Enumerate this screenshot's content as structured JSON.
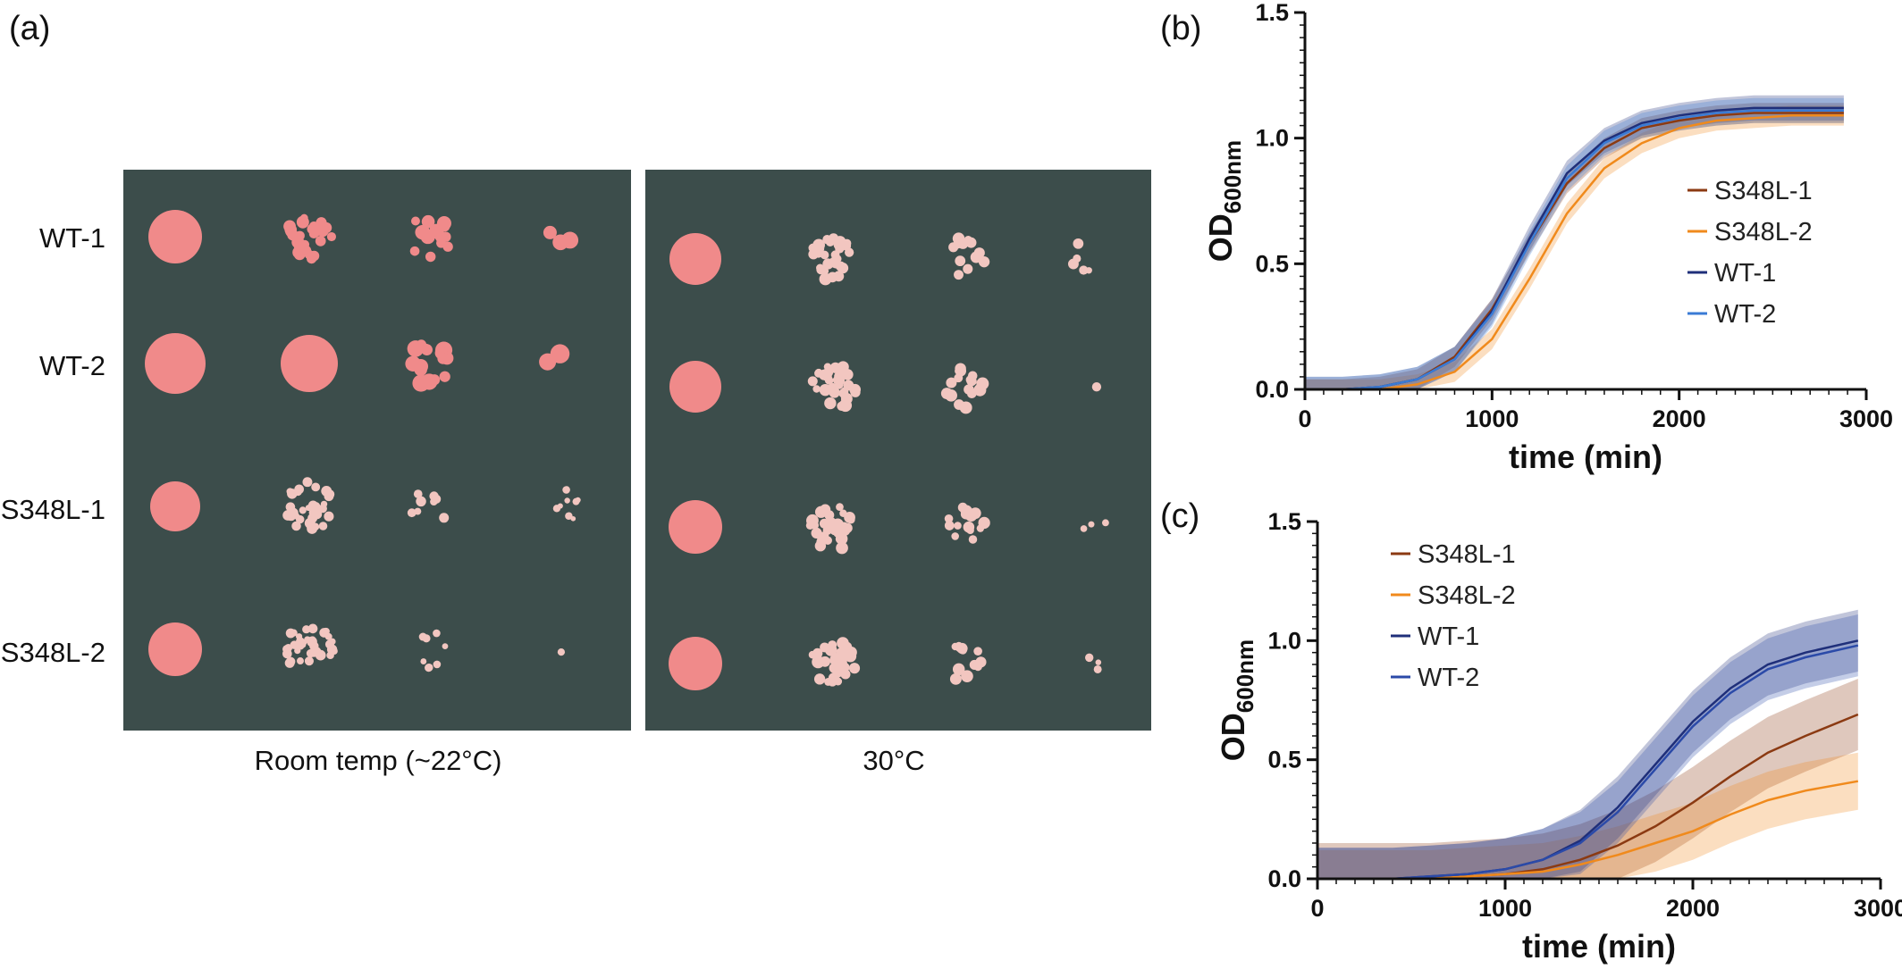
{
  "panel_a": {
    "label": "(a)",
    "row_labels": [
      "WT-1",
      "WT-2",
      "S348L-1",
      "S348L-2"
    ],
    "condition_labels": [
      "Room temp (~22°C)",
      "30°C"
    ],
    "colors": {
      "plate": "#3c4d4b",
      "colony": "#f08a8a",
      "colony_pale": "#f2c6c0"
    }
  },
  "chart_data": [
    {
      "type": "line",
      "label": "(b)",
      "xlabel": "time (min)",
      "ylabel": "OD",
      "ylabel_sub": "600nm",
      "xlim": [
        0,
        3000
      ],
      "ylim": [
        0,
        1.5
      ],
      "x_ticks": [
        "0",
        "1000",
        "2000",
        "3000"
      ],
      "y_ticks": [
        "0.0",
        "0.5",
        "1.0",
        "1.5"
      ],
      "legend_position": "right",
      "x": [
        0,
        200,
        400,
        600,
        800,
        1000,
        1200,
        1400,
        1600,
        1800,
        2000,
        2200,
        2400,
        2600,
        2880
      ],
      "series": [
        {
          "name": "S348L-1",
          "color": "#8b3a12",
          "values": [
            0.0,
            0.0,
            0.01,
            0.04,
            0.13,
            0.32,
            0.58,
            0.82,
            0.96,
            1.04,
            1.07,
            1.09,
            1.1,
            1.1,
            1.1
          ],
          "error": 0.04
        },
        {
          "name": "S348L-2",
          "color": "#f08a1c",
          "values": [
            0.0,
            0.0,
            0.0,
            0.02,
            0.07,
            0.2,
            0.44,
            0.7,
            0.88,
            0.98,
            1.04,
            1.07,
            1.08,
            1.09,
            1.09
          ],
          "error": 0.04
        },
        {
          "name": "WT-1",
          "color": "#1f2f7a",
          "values": [
            0.0,
            0.0,
            0.01,
            0.04,
            0.12,
            0.31,
            0.6,
            0.86,
            0.99,
            1.06,
            1.09,
            1.11,
            1.12,
            1.12,
            1.12
          ],
          "error": 0.05
        },
        {
          "name": "WT-2",
          "color": "#3a7bd5",
          "values": [
            0.0,
            0.0,
            0.01,
            0.04,
            0.12,
            0.3,
            0.58,
            0.84,
            0.98,
            1.05,
            1.08,
            1.1,
            1.11,
            1.11,
            1.11
          ],
          "error": 0.05
        }
      ]
    },
    {
      "type": "line",
      "label": "(c)",
      "xlabel": "time (min)",
      "ylabel": "OD",
      "ylabel_sub": "600nm",
      "xlim": [
        0,
        3000
      ],
      "ylim": [
        0,
        1.5
      ],
      "x_ticks": [
        "0",
        "1000",
        "2000",
        "3000"
      ],
      "y_ticks": [
        "0.0",
        "0.5",
        "1.0",
        "1.5"
      ],
      "legend_position": "top-left",
      "x": [
        0,
        200,
        400,
        600,
        800,
        1000,
        1200,
        1400,
        1600,
        1800,
        2000,
        2200,
        2400,
        2600,
        2880
      ],
      "series": [
        {
          "name": "S348L-1",
          "color": "#8b3a12",
          "values": [
            0.0,
            0.0,
            0.0,
            0.0,
            0.01,
            0.02,
            0.04,
            0.08,
            0.14,
            0.22,
            0.32,
            0.43,
            0.53,
            0.6,
            0.69
          ],
          "error": 0.15
        },
        {
          "name": "S348L-2",
          "color": "#f08a1c",
          "values": [
            0.0,
            0.0,
            0.0,
            0.0,
            0.01,
            0.02,
            0.03,
            0.06,
            0.1,
            0.15,
            0.2,
            0.27,
            0.33,
            0.37,
            0.41
          ],
          "error": 0.12
        },
        {
          "name": "WT-1",
          "color": "#1f2f7a",
          "values": [
            0.0,
            0.0,
            0.0,
            0.01,
            0.02,
            0.04,
            0.08,
            0.16,
            0.3,
            0.48,
            0.66,
            0.8,
            0.9,
            0.95,
            1.0
          ],
          "error": 0.13
        },
        {
          "name": "WT-2",
          "color": "#2b4aa8",
          "values": [
            0.0,
            0.0,
            0.0,
            0.01,
            0.02,
            0.04,
            0.08,
            0.15,
            0.28,
            0.46,
            0.64,
            0.78,
            0.88,
            0.93,
            0.98
          ],
          "error": 0.13
        }
      ]
    }
  ]
}
